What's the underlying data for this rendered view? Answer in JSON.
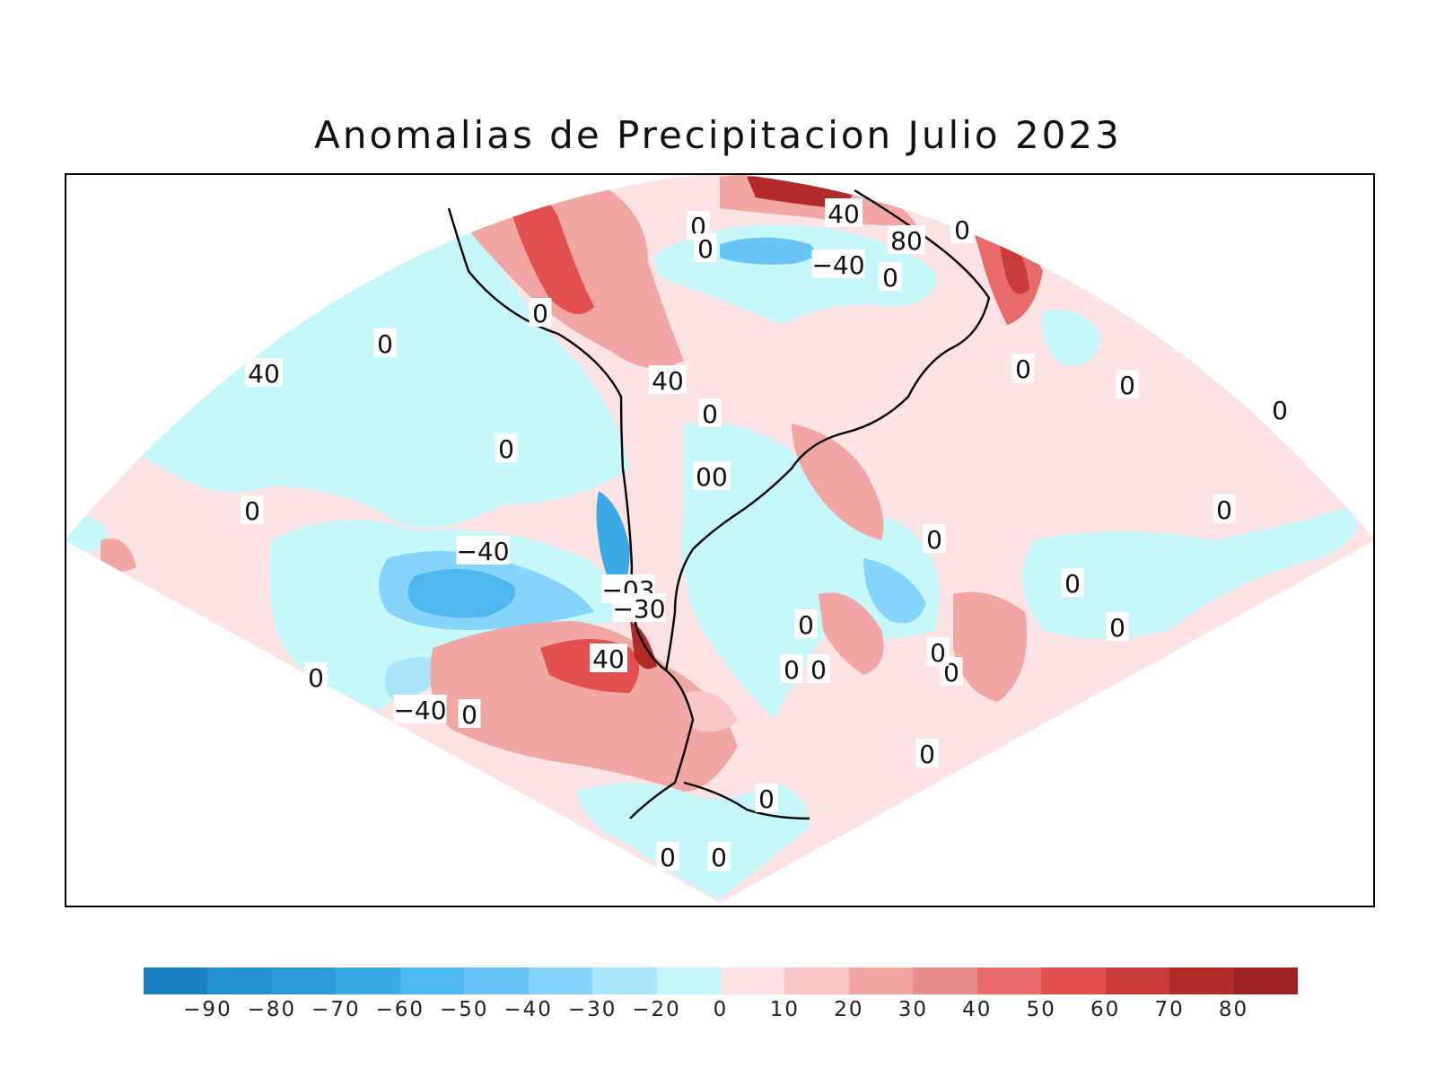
{
  "title": "Anomalias de Precipitacion Julio 2023",
  "colorbar": {
    "colors": [
      "#1a7fc0",
      "#2590cf",
      "#2f9cd9",
      "#3aa9e4",
      "#4db7ef",
      "#66c4f7",
      "#86d3fb",
      "#a9e6fc",
      "#c6f8fb",
      "#fde3e3",
      "#f9c7c6",
      "#f2a6a4",
      "#e88c8b",
      "#e86a6a",
      "#e24f4f",
      "#c93a3a",
      "#b12b2b",
      "#9b2222"
    ],
    "tick_labels": [
      "−90",
      "−80",
      "−70",
      "−60",
      "−50",
      "−40",
      "−30",
      "−20",
      "0",
      "10",
      "20",
      "30",
      "40",
      "50",
      "60",
      "70",
      "80"
    ]
  },
  "contour_labels": [
    "40",
    "80",
    "0",
    "−40",
    "0",
    "0",
    "0",
    "0",
    "0",
    "40",
    "0",
    "40",
    "0",
    "0",
    "0",
    "0",
    "00",
    "−40",
    "−03",
    "−30",
    "40",
    "0",
    "0",
    "0",
    "0",
    "0",
    "0",
    "−40",
    "0",
    "0",
    "0",
    "0",
    "0",
    "0",
    "0",
    "0",
    "0",
    "0"
  ],
  "colors": {
    "positive_light": "#fde3e3",
    "positive_mid": "#f2a6a4",
    "positive_strong": "#c93a3a",
    "negative_light": "#c6f8fb",
    "negative_mid": "#66c4f7",
    "negative_strong": "#2590cf"
  }
}
